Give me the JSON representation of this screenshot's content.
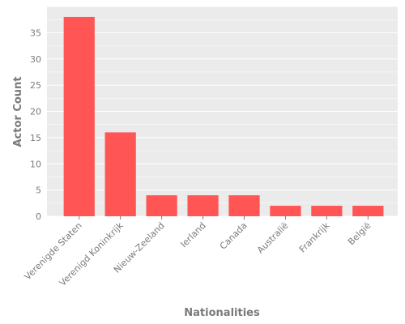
{
  "chart_data": {
    "type": "bar",
    "title": "",
    "xlabel": "Nationalities",
    "ylabel": "Actor Count",
    "categories": [
      "Verenigde Staten",
      "Verenigd Koninkrijk",
      "Nieuw-Zeeland",
      "Ierland",
      "Canada",
      "Australië",
      "Frankrijk",
      "België"
    ],
    "values": [
      38,
      16,
      4,
      4,
      4,
      2,
      2,
      2
    ],
    "ylim": [
      0,
      40
    ],
    "yticks": [
      0,
      5,
      10,
      15,
      20,
      25,
      30,
      35
    ],
    "grid": true,
    "legend": "none",
    "colors": {
      "bar": "#ff5555",
      "plot_background": "#ebebeb",
      "grid": "#ffffff",
      "text": "#7a7a7a"
    }
  }
}
